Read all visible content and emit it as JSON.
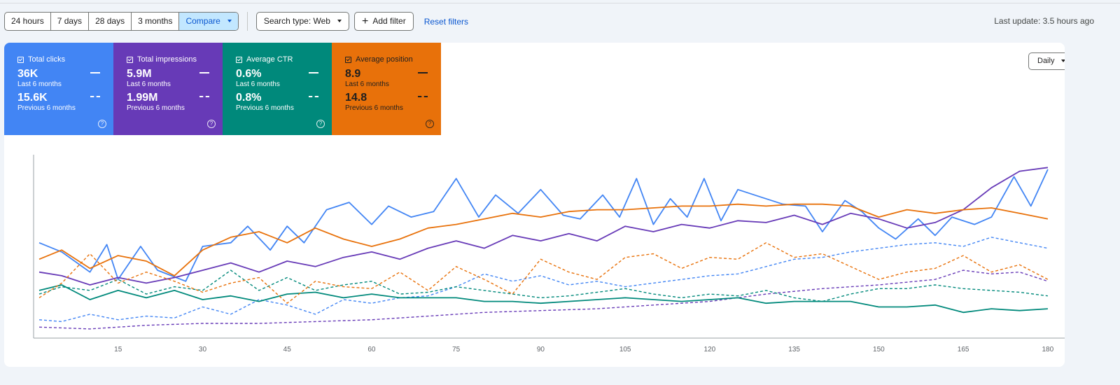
{
  "toolbar": {
    "ranges": [
      "24 hours",
      "7 days",
      "28 days",
      "3 months"
    ],
    "compare_label": "Compare",
    "search_type_label": "Search type: Web",
    "add_filter_label": "Add filter",
    "reset_filters_label": "Reset filters"
  },
  "last_update": "Last update: 3.5 hours ago",
  "granularity": "Daily",
  "metrics": [
    {
      "title": "Total clicks",
      "current": "36K",
      "current_period": "Last 6 months",
      "previous": "15.6K",
      "previous_period": "Previous 6 months",
      "color": "#4285f4"
    },
    {
      "title": "Total impressions",
      "current": "5.9M",
      "current_period": "Last 6 months",
      "previous": "1.99M",
      "previous_period": "Previous 6 months",
      "color": "#673ab7"
    },
    {
      "title": "Average CTR",
      "current": "0.6%",
      "current_period": "Last 6 months",
      "previous": "0.8%",
      "previous_period": "Previous 6 months",
      "color": "#00897b"
    },
    {
      "title": "Average position",
      "current": "8.9",
      "current_period": "Last 6 months",
      "previous": "14.8",
      "previous_period": "Previous 6 months",
      "color": "#e8710a"
    }
  ],
  "chart_data": {
    "type": "line",
    "xlim": [
      0,
      183
    ],
    "ylim": [
      0,
      1
    ],
    "x_ticks": [
      "15",
      "30",
      "45",
      "60",
      "75",
      "90",
      "105",
      "120",
      "135",
      "150",
      "165",
      "180"
    ],
    "x_tick_values": [
      15,
      30,
      45,
      60,
      75,
      90,
      105,
      120,
      135,
      150,
      165,
      180
    ],
    "series": [
      {
        "key": "clicks_current",
        "color": "#4285f4",
        "dashed": false,
        "points": [
          [
            1,
            0.52
          ],
          [
            5,
            0.47
          ],
          [
            10,
            0.36
          ],
          [
            13,
            0.51
          ],
          [
            15,
            0.32
          ],
          [
            19,
            0.5
          ],
          [
            22,
            0.37
          ],
          [
            27,
            0.31
          ],
          [
            30,
            0.5
          ],
          [
            35,
            0.52
          ],
          [
            38,
            0.61
          ],
          [
            42,
            0.48
          ],
          [
            45,
            0.61
          ],
          [
            48,
            0.52
          ],
          [
            52,
            0.7
          ],
          [
            56,
            0.74
          ],
          [
            60,
            0.62
          ],
          [
            63,
            0.72
          ],
          [
            67,
            0.66
          ],
          [
            71,
            0.69
          ],
          [
            75,
            0.87
          ],
          [
            79,
            0.66
          ],
          [
            82,
            0.78
          ],
          [
            86,
            0.68
          ],
          [
            90,
            0.81
          ],
          [
            94,
            0.67
          ],
          [
            97,
            0.65
          ],
          [
            101,
            0.78
          ],
          [
            104,
            0.66
          ],
          [
            107,
            0.87
          ],
          [
            110,
            0.62
          ],
          [
            113,
            0.76
          ],
          [
            116,
            0.66
          ],
          [
            119,
            0.87
          ],
          [
            122,
            0.64
          ],
          [
            125,
            0.81
          ],
          [
            129,
            0.77
          ],
          [
            133,
            0.73
          ],
          [
            137,
            0.72
          ],
          [
            140,
            0.58
          ],
          [
            144,
            0.75
          ],
          [
            147,
            0.69
          ],
          [
            150,
            0.6
          ],
          [
            153,
            0.54
          ],
          [
            157,
            0.65
          ],
          [
            160,
            0.56
          ],
          [
            163,
            0.66
          ],
          [
            167,
            0.62
          ],
          [
            170,
            0.66
          ],
          [
            174,
            0.88
          ],
          [
            177,
            0.72
          ],
          [
            180,
            0.92
          ]
        ]
      },
      {
        "key": "clicks_previous",
        "color": "#4285f4",
        "dashed": true,
        "points": [
          [
            1,
            0.1
          ],
          [
            5,
            0.09
          ],
          [
            10,
            0.13
          ],
          [
            15,
            0.1
          ],
          [
            20,
            0.12
          ],
          [
            25,
            0.11
          ],
          [
            30,
            0.17
          ],
          [
            35,
            0.13
          ],
          [
            40,
            0.21
          ],
          [
            45,
            0.18
          ],
          [
            50,
            0.13
          ],
          [
            55,
            0.21
          ],
          [
            60,
            0.19
          ],
          [
            65,
            0.22
          ],
          [
            70,
            0.23
          ],
          [
            75,
            0.28
          ],
          [
            80,
            0.35
          ],
          [
            85,
            0.31
          ],
          [
            90,
            0.34
          ],
          [
            95,
            0.29
          ],
          [
            100,
            0.31
          ],
          [
            105,
            0.28
          ],
          [
            110,
            0.3
          ],
          [
            115,
            0.32
          ],
          [
            120,
            0.34
          ],
          [
            125,
            0.35
          ],
          [
            130,
            0.39
          ],
          [
            135,
            0.43
          ],
          [
            140,
            0.44
          ],
          [
            145,
            0.47
          ],
          [
            150,
            0.49
          ],
          [
            155,
            0.51
          ],
          [
            160,
            0.52
          ],
          [
            165,
            0.5
          ],
          [
            170,
            0.55
          ],
          [
            175,
            0.52
          ],
          [
            180,
            0.49
          ]
        ]
      },
      {
        "key": "impressions_current",
        "color": "#673ab7",
        "dashed": false,
        "points": [
          [
            1,
            0.36
          ],
          [
            5,
            0.34
          ],
          [
            10,
            0.29
          ],
          [
            15,
            0.33
          ],
          [
            20,
            0.3
          ],
          [
            25,
            0.33
          ],
          [
            30,
            0.37
          ],
          [
            35,
            0.41
          ],
          [
            40,
            0.36
          ],
          [
            45,
            0.42
          ],
          [
            50,
            0.39
          ],
          [
            55,
            0.44
          ],
          [
            60,
            0.47
          ],
          [
            65,
            0.43
          ],
          [
            70,
            0.49
          ],
          [
            75,
            0.53
          ],
          [
            80,
            0.49
          ],
          [
            85,
            0.56
          ],
          [
            90,
            0.53
          ],
          [
            95,
            0.57
          ],
          [
            100,
            0.53
          ],
          [
            105,
            0.61
          ],
          [
            110,
            0.58
          ],
          [
            115,
            0.62
          ],
          [
            120,
            0.6
          ],
          [
            125,
            0.64
          ],
          [
            130,
            0.63
          ],
          [
            135,
            0.67
          ],
          [
            140,
            0.62
          ],
          [
            145,
            0.68
          ],
          [
            150,
            0.65
          ],
          [
            155,
            0.6
          ],
          [
            160,
            0.63
          ],
          [
            165,
            0.7
          ],
          [
            170,
            0.82
          ],
          [
            175,
            0.91
          ],
          [
            180,
            0.93
          ]
        ]
      },
      {
        "key": "impressions_previous",
        "color": "#673ab7",
        "dashed": true,
        "points": [
          [
            1,
            0.06
          ],
          [
            10,
            0.05
          ],
          [
            20,
            0.07
          ],
          [
            30,
            0.08
          ],
          [
            40,
            0.08
          ],
          [
            50,
            0.09
          ],
          [
            60,
            0.1
          ],
          [
            70,
            0.12
          ],
          [
            80,
            0.14
          ],
          [
            90,
            0.15
          ],
          [
            100,
            0.16
          ],
          [
            110,
            0.18
          ],
          [
            120,
            0.2
          ],
          [
            130,
            0.24
          ],
          [
            140,
            0.27
          ],
          [
            150,
            0.29
          ],
          [
            160,
            0.32
          ],
          [
            165,
            0.37
          ],
          [
            170,
            0.35
          ],
          [
            175,
            0.36
          ],
          [
            180,
            0.31
          ]
        ]
      },
      {
        "key": "ctr_current",
        "color": "#00897b",
        "dashed": false,
        "points": [
          [
            1,
            0.26
          ],
          [
            5,
            0.29
          ],
          [
            10,
            0.21
          ],
          [
            15,
            0.26
          ],
          [
            20,
            0.22
          ],
          [
            25,
            0.26
          ],
          [
            30,
            0.21
          ],
          [
            35,
            0.23
          ],
          [
            40,
            0.2
          ],
          [
            45,
            0.24
          ],
          [
            50,
            0.25
          ],
          [
            55,
            0.22
          ],
          [
            60,
            0.24
          ],
          [
            65,
            0.22
          ],
          [
            70,
            0.22
          ],
          [
            75,
            0.22
          ],
          [
            80,
            0.2
          ],
          [
            85,
            0.2
          ],
          [
            90,
            0.19
          ],
          [
            95,
            0.2
          ],
          [
            100,
            0.21
          ],
          [
            105,
            0.22
          ],
          [
            110,
            0.21
          ],
          [
            115,
            0.2
          ],
          [
            120,
            0.21
          ],
          [
            125,
            0.22
          ],
          [
            130,
            0.19
          ],
          [
            135,
            0.2
          ],
          [
            140,
            0.2
          ],
          [
            145,
            0.2
          ],
          [
            150,
            0.17
          ],
          [
            155,
            0.17
          ],
          [
            160,
            0.18
          ],
          [
            165,
            0.14
          ],
          [
            170,
            0.16
          ],
          [
            175,
            0.15
          ],
          [
            180,
            0.16
          ]
        ]
      },
      {
        "key": "ctr_previous",
        "color": "#00897b",
        "dashed": true,
        "points": [
          [
            1,
            0.24
          ],
          [
            5,
            0.28
          ],
          [
            10,
            0.26
          ],
          [
            15,
            0.32
          ],
          [
            20,
            0.24
          ],
          [
            25,
            0.28
          ],
          [
            30,
            0.26
          ],
          [
            35,
            0.37
          ],
          [
            40,
            0.26
          ],
          [
            45,
            0.33
          ],
          [
            50,
            0.26
          ],
          [
            55,
            0.29
          ],
          [
            60,
            0.31
          ],
          [
            65,
            0.24
          ],
          [
            70,
            0.25
          ],
          [
            75,
            0.28
          ],
          [
            80,
            0.26
          ],
          [
            85,
            0.24
          ],
          [
            90,
            0.22
          ],
          [
            95,
            0.23
          ],
          [
            100,
            0.25
          ],
          [
            105,
            0.27
          ],
          [
            110,
            0.24
          ],
          [
            115,
            0.22
          ],
          [
            120,
            0.24
          ],
          [
            125,
            0.23
          ],
          [
            130,
            0.26
          ],
          [
            135,
            0.22
          ],
          [
            140,
            0.2
          ],
          [
            145,
            0.24
          ],
          [
            150,
            0.27
          ],
          [
            155,
            0.27
          ],
          [
            160,
            0.29
          ],
          [
            165,
            0.27
          ],
          [
            170,
            0.26
          ],
          [
            175,
            0.25
          ],
          [
            180,
            0.23
          ]
        ]
      },
      {
        "key": "position_current",
        "color": "#e8710a",
        "dashed": false,
        "points": [
          [
            1,
            0.43
          ],
          [
            5,
            0.48
          ],
          [
            10,
            0.38
          ],
          [
            15,
            0.45
          ],
          [
            20,
            0.42
          ],
          [
            25,
            0.34
          ],
          [
            30,
            0.48
          ],
          [
            35,
            0.55
          ],
          [
            40,
            0.58
          ],
          [
            45,
            0.52
          ],
          [
            50,
            0.6
          ],
          [
            55,
            0.54
          ],
          [
            60,
            0.5
          ],
          [
            65,
            0.54
          ],
          [
            70,
            0.6
          ],
          [
            75,
            0.62
          ],
          [
            80,
            0.65
          ],
          [
            85,
            0.68
          ],
          [
            90,
            0.66
          ],
          [
            95,
            0.69
          ],
          [
            100,
            0.7
          ],
          [
            105,
            0.7
          ],
          [
            110,
            0.71
          ],
          [
            115,
            0.72
          ],
          [
            120,
            0.72
          ],
          [
            125,
            0.73
          ],
          [
            130,
            0.72
          ],
          [
            135,
            0.73
          ],
          [
            140,
            0.73
          ],
          [
            145,
            0.72
          ],
          [
            150,
            0.66
          ],
          [
            155,
            0.7
          ],
          [
            160,
            0.68
          ],
          [
            165,
            0.7
          ],
          [
            170,
            0.71
          ],
          [
            175,
            0.68
          ],
          [
            180,
            0.65
          ]
        ]
      },
      {
        "key": "position_previous",
        "color": "#e8710a",
        "dashed": true,
        "points": [
          [
            1,
            0.22
          ],
          [
            5,
            0.3
          ],
          [
            10,
            0.46
          ],
          [
            15,
            0.3
          ],
          [
            20,
            0.36
          ],
          [
            25,
            0.31
          ],
          [
            30,
            0.25
          ],
          [
            35,
            0.3
          ],
          [
            40,
            0.33
          ],
          [
            45,
            0.19
          ],
          [
            50,
            0.31
          ],
          [
            55,
            0.28
          ],
          [
            60,
            0.27
          ],
          [
            65,
            0.36
          ],
          [
            70,
            0.26
          ],
          [
            75,
            0.39
          ],
          [
            80,
            0.32
          ],
          [
            85,
            0.24
          ],
          [
            90,
            0.43
          ],
          [
            95,
            0.36
          ],
          [
            100,
            0.32
          ],
          [
            105,
            0.44
          ],
          [
            110,
            0.46
          ],
          [
            115,
            0.38
          ],
          [
            120,
            0.44
          ],
          [
            125,
            0.43
          ],
          [
            130,
            0.52
          ],
          [
            135,
            0.44
          ],
          [
            140,
            0.46
          ],
          [
            145,
            0.39
          ],
          [
            150,
            0.32
          ],
          [
            155,
            0.36
          ],
          [
            160,
            0.38
          ],
          [
            165,
            0.45
          ],
          [
            170,
            0.36
          ],
          [
            175,
            0.4
          ],
          [
            180,
            0.32
          ]
        ]
      }
    ]
  }
}
